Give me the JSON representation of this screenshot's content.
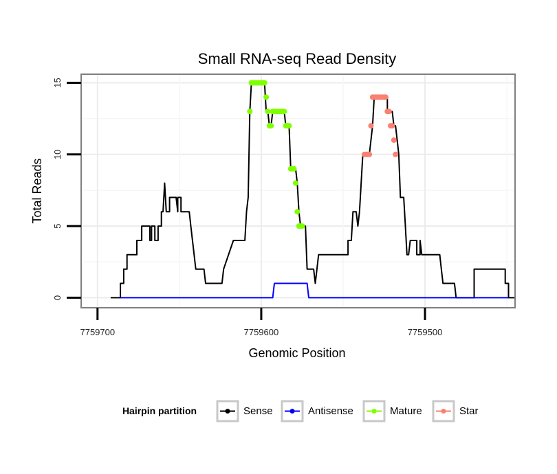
{
  "chart_data": {
    "type": "line",
    "title": "Small RNA-seq Read Density",
    "xlabel": "Genomic Position",
    "ylabel": "Total Reads",
    "xlim": [
      7759710,
      7759445
    ],
    "x_reversed": true,
    "ylim": [
      -0.7,
      15.6
    ],
    "x_ticks": [
      7759700,
      7759600,
      7759500
    ],
    "x_tick_labels": [
      "7759700",
      "7759600",
      "7759500"
    ],
    "y_ticks": [
      0,
      5,
      10,
      15
    ],
    "y_tick_labels": [
      "0",
      "5",
      "10",
      "15"
    ],
    "grid": true,
    "legend": {
      "title": "Hairpin partition",
      "position": "bottom",
      "entries": [
        {
          "name": "Sense",
          "color": "#000000"
        },
        {
          "name": "Antisense",
          "color": "#0000ff"
        },
        {
          "name": "Mature",
          "color": "#7fff00"
        },
        {
          "name": "Star",
          "color": "#fa8072"
        }
      ]
    },
    "series": [
      {
        "name": "Sense",
        "color": "#000000",
        "style": "line",
        "points": [
          [
            7759692,
            0
          ],
          [
            7759686,
            0
          ],
          [
            7759686,
            1
          ],
          [
            7759684,
            1
          ],
          [
            7759684,
            2
          ],
          [
            7759682,
            2
          ],
          [
            7759682,
            3
          ],
          [
            7759676,
            3
          ],
          [
            7759676,
            4
          ],
          [
            7759673,
            4
          ],
          [
            7759673,
            5
          ],
          [
            7759668,
            5
          ],
          [
            7759668,
            4
          ],
          [
            7759667,
            4
          ],
          [
            7759667,
            5
          ],
          [
            7759665,
            5
          ],
          [
            7759665,
            4
          ],
          [
            7759663,
            4
          ],
          [
            7759663,
            5
          ],
          [
            7759661,
            5
          ],
          [
            7759661,
            6
          ],
          [
            7759660,
            6
          ],
          [
            7759659,
            8
          ],
          [
            7759658,
            6
          ],
          [
            7759656,
            6
          ],
          [
            7759656,
            7
          ],
          [
            7759652,
            7
          ],
          [
            7759651,
            6
          ],
          [
            7759651,
            7
          ],
          [
            7759649,
            7
          ],
          [
            7759649,
            6
          ],
          [
            7759644,
            6
          ],
          [
            7759643,
            5
          ],
          [
            7759642,
            4
          ],
          [
            7759641,
            3
          ],
          [
            7759640,
            2
          ],
          [
            7759635,
            2
          ],
          [
            7759634,
            1
          ],
          [
            7759624,
            1
          ],
          [
            7759623,
            2
          ],
          [
            7759620,
            3
          ],
          [
            7759617,
            4
          ],
          [
            7759610,
            4
          ],
          [
            7759609,
            6
          ],
          [
            7759608,
            7
          ],
          [
            7759607,
            13
          ],
          [
            7759606,
            15
          ],
          [
            7759598,
            15
          ],
          [
            7759597,
            13
          ],
          [
            7759596,
            13
          ],
          [
            7759595,
            12
          ],
          [
            7759594,
            12
          ],
          [
            7759593,
            13
          ],
          [
            7759586,
            13
          ],
          [
            7759585,
            12
          ],
          [
            7759583,
            12
          ],
          [
            7759582,
            9
          ],
          [
            7759579,
            9
          ],
          [
            7759578,
            8
          ],
          [
            7759577,
            6
          ],
          [
            7759576,
            5
          ],
          [
            7759573,
            5
          ],
          [
            7759572,
            2
          ],
          [
            7759568,
            2
          ],
          [
            7759567,
            1
          ],
          [
            7759566,
            2
          ],
          [
            7759565,
            3
          ],
          [
            7759547,
            3
          ],
          [
            7759547,
            4
          ],
          [
            7759545,
            4
          ],
          [
            7759544,
            6
          ],
          [
            7759542,
            6
          ],
          [
            7759541,
            5
          ],
          [
            7759540,
            6
          ],
          [
            7759539,
            8
          ],
          [
            7759538,
            10
          ],
          [
            7759534,
            10
          ],
          [
            7759532,
            12
          ],
          [
            7759531,
            14
          ],
          [
            7759523,
            14
          ],
          [
            7759523,
            13
          ],
          [
            7759520,
            13
          ],
          [
            7759519,
            12
          ],
          [
            7759518,
            12
          ],
          [
            7759517,
            11
          ],
          [
            7759516,
            10
          ],
          [
            7759515,
            7
          ],
          [
            7759513,
            7
          ],
          [
            7759512,
            5
          ],
          [
            7759511,
            3
          ],
          [
            7759510,
            3
          ],
          [
            7759509,
            4
          ],
          [
            7759505,
            4
          ],
          [
            7759505,
            3
          ],
          [
            7759503,
            3
          ],
          [
            7759503,
            4
          ],
          [
            7759502,
            3
          ],
          [
            7759491,
            3
          ],
          [
            7759490,
            2
          ],
          [
            7759489,
            1
          ],
          [
            7759482,
            1
          ],
          [
            7759481,
            0
          ],
          [
            7759470,
            0
          ],
          [
            7759470,
            2
          ],
          [
            7759451,
            2
          ],
          [
            7759451,
            1
          ],
          [
            7759449,
            1
          ],
          [
            7759449,
            0
          ],
          [
            7759445,
            0
          ]
        ]
      },
      {
        "name": "Antisense",
        "color": "#0000ff",
        "style": "line",
        "points": [
          [
            7759686,
            0
          ],
          [
            7759593,
            0
          ],
          [
            7759592,
            1
          ],
          [
            7759572,
            1
          ],
          [
            7759571,
            0
          ],
          [
            7759449,
            0
          ]
        ]
      },
      {
        "name": "Mature",
        "color": "#7fff00",
        "style": "points",
        "points": [
          [
            7759607,
            13
          ],
          [
            7759606,
            15
          ],
          [
            7759605,
            15
          ],
          [
            7759604,
            15
          ],
          [
            7759603,
            15
          ],
          [
            7759602,
            15
          ],
          [
            7759601,
            15
          ],
          [
            7759600,
            15
          ],
          [
            7759599,
            15
          ],
          [
            7759598,
            15
          ],
          [
            7759597,
            14
          ],
          [
            7759596,
            13
          ],
          [
            7759595,
            12
          ],
          [
            7759594,
            12
          ],
          [
            7759593,
            13
          ],
          [
            7759592,
            13
          ],
          [
            7759591,
            13
          ],
          [
            7759590,
            13
          ],
          [
            7759589,
            13
          ],
          [
            7759588,
            13
          ],
          [
            7759587,
            13
          ],
          [
            7759586,
            13
          ],
          [
            7759585,
            12
          ],
          [
            7759584,
            12
          ],
          [
            7759583,
            12
          ],
          [
            7759582,
            9
          ],
          [
            7759581,
            9
          ],
          [
            7759580,
            9
          ],
          [
            7759579,
            8
          ],
          [
            7759578,
            6
          ],
          [
            7759577,
            5
          ],
          [
            7759576,
            5
          ],
          [
            7759575,
            5
          ]
        ]
      },
      {
        "name": "Star",
        "color": "#fa8072",
        "style": "points",
        "points": [
          [
            7759537,
            10
          ],
          [
            7759536,
            10
          ],
          [
            7759535,
            10
          ],
          [
            7759534,
            10
          ],
          [
            7759533,
            12
          ],
          [
            7759532,
            14
          ],
          [
            7759531,
            14
          ],
          [
            7759530,
            14
          ],
          [
            7759529,
            14
          ],
          [
            7759528,
            14
          ],
          [
            7759527,
            14
          ],
          [
            7759526,
            14
          ],
          [
            7759525,
            14
          ],
          [
            7759524,
            14
          ],
          [
            7759523,
            13
          ],
          [
            7759522,
            13
          ],
          [
            7759521,
            12
          ],
          [
            7759520,
            12
          ],
          [
            7759519,
            11
          ],
          [
            7759518,
            10
          ]
        ]
      }
    ]
  }
}
